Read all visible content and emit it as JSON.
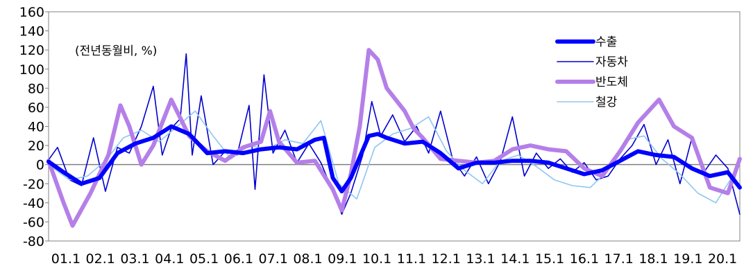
{
  "chart_data": {
    "type": "line",
    "title": "",
    "xlabel": "",
    "ylabel": "",
    "annotation": "(전년동월비, %)",
    "ylim": [
      -80,
      160
    ],
    "yticks": [
      "160",
      "140",
      "120",
      "100",
      "80",
      "60",
      "40",
      "20",
      "0",
      "-20",
      "-40",
      "-60",
      "-80"
    ],
    "x_tick_labels": [
      "01.1",
      "02.1",
      "03.1",
      "04.1",
      "05.1",
      "06.1",
      "07.1",
      "08.1",
      "09.1",
      "10.1",
      "11.1",
      "12.1",
      "13.1",
      "14.1",
      "15.1",
      "16.1",
      "17.1",
      "18.1",
      "19.1",
      "20.1"
    ],
    "x_start": "2001.1",
    "x_end": "2020.4",
    "grid": false,
    "legend_position": "top-right",
    "series": [
      {
        "name": "수출",
        "color": "#0000ff",
        "style": "thick",
        "points": [
          [
            "2001.01",
            3
          ],
          [
            "2001.06",
            -8
          ],
          [
            "2001.12",
            -20
          ],
          [
            "2002.06",
            -14
          ],
          [
            "2002.12",
            12
          ],
          [
            "2003.06",
            22
          ],
          [
            "2003.12",
            28
          ],
          [
            "2004.06",
            40
          ],
          [
            "2004.12",
            32
          ],
          [
            "2005.06",
            12
          ],
          [
            "2005.12",
            14
          ],
          [
            "2006.06",
            12
          ],
          [
            "2006.12",
            16
          ],
          [
            "2007.06",
            18
          ],
          [
            "2007.12",
            16
          ],
          [
            "2008.06",
            26
          ],
          [
            "2008.09",
            28
          ],
          [
            "2008.12",
            -14
          ],
          [
            "2009.03",
            -28
          ],
          [
            "2009.06",
            -14
          ],
          [
            "2009.12",
            30
          ],
          [
            "2010.03",
            32
          ],
          [
            "2010.06",
            28
          ],
          [
            "2010.12",
            22
          ],
          [
            "2011.06",
            24
          ],
          [
            "2011.12",
            12
          ],
          [
            "2012.06",
            -4
          ],
          [
            "2012.12",
            2
          ],
          [
            "2013.06",
            2
          ],
          [
            "2013.12",
            4
          ],
          [
            "2014.06",
            4
          ],
          [
            "2014.12",
            2
          ],
          [
            "2015.06",
            -4
          ],
          [
            "2015.12",
            -10
          ],
          [
            "2016.06",
            -6
          ],
          [
            "2016.12",
            4
          ],
          [
            "2017.06",
            14
          ],
          [
            "2017.12",
            10
          ],
          [
            "2018.06",
            8
          ],
          [
            "2018.12",
            -4
          ],
          [
            "2019.06",
            -12
          ],
          [
            "2019.12",
            -8
          ],
          [
            "2020.04",
            -24
          ]
        ]
      },
      {
        "name": "자동차",
        "color": "#0000cc",
        "style": "thin",
        "points": [
          [
            "2001.01",
            5
          ],
          [
            "2001.04",
            18
          ],
          [
            "2001.08",
            -16
          ],
          [
            "2001.12",
            -22
          ],
          [
            "2002.04",
            28
          ],
          [
            "2002.08",
            -28
          ],
          [
            "2002.12",
            18
          ],
          [
            "2003.04",
            12
          ],
          [
            "2003.08",
            40
          ],
          [
            "2003.12",
            82
          ],
          [
            "2004.03",
            10
          ],
          [
            "2004.06",
            38
          ],
          [
            "2004.09",
            48
          ],
          [
            "2004.11",
            116
          ],
          [
            "2005.01",
            10
          ],
          [
            "2005.04",
            72
          ],
          [
            "2005.08",
            0
          ],
          [
            "2005.12",
            14
          ],
          [
            "2006.04",
            10
          ],
          [
            "2006.08",
            62
          ],
          [
            "2006.10",
            -26
          ],
          [
            "2007.01",
            94
          ],
          [
            "2007.04",
            12
          ],
          [
            "2007.08",
            36
          ],
          [
            "2007.12",
            2
          ],
          [
            "2008.04",
            22
          ],
          [
            "2008.08",
            2
          ],
          [
            "2008.12",
            -28
          ],
          [
            "2009.03",
            -52
          ],
          [
            "2009.06",
            -30
          ],
          [
            "2009.10",
            10
          ],
          [
            "2010.01",
            66
          ],
          [
            "2010.04",
            30
          ],
          [
            "2010.08",
            52
          ],
          [
            "2010.12",
            24
          ],
          [
            "2011.04",
            40
          ],
          [
            "2011.08",
            12
          ],
          [
            "2011.12",
            56
          ],
          [
            "2012.04",
            6
          ],
          [
            "2012.08",
            -12
          ],
          [
            "2012.12",
            8
          ],
          [
            "2013.04",
            -20
          ],
          [
            "2013.08",
            4
          ],
          [
            "2013.12",
            50
          ],
          [
            "2014.04",
            -12
          ],
          [
            "2014.08",
            12
          ],
          [
            "2014.12",
            -4
          ],
          [
            "2015.04",
            6
          ],
          [
            "2015.08",
            -8
          ],
          [
            "2015.12",
            2
          ],
          [
            "2016.04",
            -16
          ],
          [
            "2016.08",
            -12
          ],
          [
            "2016.12",
            6
          ],
          [
            "2017.04",
            20
          ],
          [
            "2017.08",
            42
          ],
          [
            "2017.12",
            0
          ],
          [
            "2018.04",
            26
          ],
          [
            "2018.08",
            -20
          ],
          [
            "2018.12",
            28
          ],
          [
            "2019.04",
            -8
          ],
          [
            "2019.08",
            10
          ],
          [
            "2019.12",
            -4
          ],
          [
            "2020.04",
            -52
          ]
        ]
      },
      {
        "name": "반도체",
        "color": "#b57fe8",
        "style": "thick",
        "points": [
          [
            "2001.01",
            4
          ],
          [
            "2001.06",
            -40
          ],
          [
            "2001.09",
            -64
          ],
          [
            "2002.03",
            -30
          ],
          [
            "2002.09",
            10
          ],
          [
            "2003.01",
            62
          ],
          [
            "2003.04",
            40
          ],
          [
            "2003.08",
            0
          ],
          [
            "2003.12",
            20
          ],
          [
            "2004.06",
            68
          ],
          [
            "2004.12",
            30
          ],
          [
            "2005.06",
            14
          ],
          [
            "2005.12",
            4
          ],
          [
            "2006.06",
            18
          ],
          [
            "2006.12",
            24
          ],
          [
            "2007.03",
            56
          ],
          [
            "2007.06",
            24
          ],
          [
            "2007.12",
            2
          ],
          [
            "2008.06",
            4
          ],
          [
            "2008.12",
            -26
          ],
          [
            "2009.03",
            -48
          ],
          [
            "2009.06",
            -10
          ],
          [
            "2009.09",
            40
          ],
          [
            "2009.12",
            120
          ],
          [
            "2010.03",
            110
          ],
          [
            "2010.06",
            80
          ],
          [
            "2010.09",
            68
          ],
          [
            "2010.12",
            56
          ],
          [
            "2011.03",
            38
          ],
          [
            "2011.06",
            28
          ],
          [
            "2011.12",
            6
          ],
          [
            "2012.06",
            4
          ],
          [
            "2012.12",
            2
          ],
          [
            "2013.06",
            4
          ],
          [
            "2013.12",
            16
          ],
          [
            "2014.06",
            20
          ],
          [
            "2014.12",
            16
          ],
          [
            "2015.06",
            14
          ],
          [
            "2015.12",
            -4
          ],
          [
            "2016.06",
            -12
          ],
          [
            "2016.12",
            14
          ],
          [
            "2017.06",
            44
          ],
          [
            "2018.01",
            68
          ],
          [
            "2018.06",
            40
          ],
          [
            "2018.12",
            28
          ],
          [
            "2019.06",
            -24
          ],
          [
            "2019.12",
            -30
          ],
          [
            "2020.04",
            6
          ]
        ]
      },
      {
        "name": "철강",
        "color": "#8fc5f2",
        "style": "thin",
        "points": [
          [
            "2001.01",
            0
          ],
          [
            "2001.08",
            -16
          ],
          [
            "2002.02",
            -12
          ],
          [
            "2002.08",
            4
          ],
          [
            "2003.02",
            28
          ],
          [
            "2003.08",
            36
          ],
          [
            "2004.02",
            24
          ],
          [
            "2004.08",
            40
          ],
          [
            "2005.02",
            56
          ],
          [
            "2005.08",
            30
          ],
          [
            "2006.02",
            6
          ],
          [
            "2006.08",
            20
          ],
          [
            "2007.02",
            16
          ],
          [
            "2007.08",
            26
          ],
          [
            "2008.02",
            22
          ],
          [
            "2008.08",
            46
          ],
          [
            "2009.02",
            -20
          ],
          [
            "2009.08",
            -36
          ],
          [
            "2010.02",
            18
          ],
          [
            "2010.08",
            32
          ],
          [
            "2011.02",
            38
          ],
          [
            "2011.08",
            50
          ],
          [
            "2012.02",
            14
          ],
          [
            "2012.08",
            -6
          ],
          [
            "2013.02",
            -20
          ],
          [
            "2013.08",
            4
          ],
          [
            "2014.02",
            10
          ],
          [
            "2014.08",
            -2
          ],
          [
            "2015.02",
            -16
          ],
          [
            "2015.08",
            -22
          ],
          [
            "2016.02",
            -24
          ],
          [
            "2016.08",
            -6
          ],
          [
            "2017.02",
            26
          ],
          [
            "2017.08",
            30
          ],
          [
            "2018.02",
            6
          ],
          [
            "2018.08",
            -10
          ],
          [
            "2019.02",
            -30
          ],
          [
            "2019.08",
            -40
          ],
          [
            "2020.02",
            -10
          ],
          [
            "2020.04",
            6
          ]
        ]
      }
    ]
  }
}
